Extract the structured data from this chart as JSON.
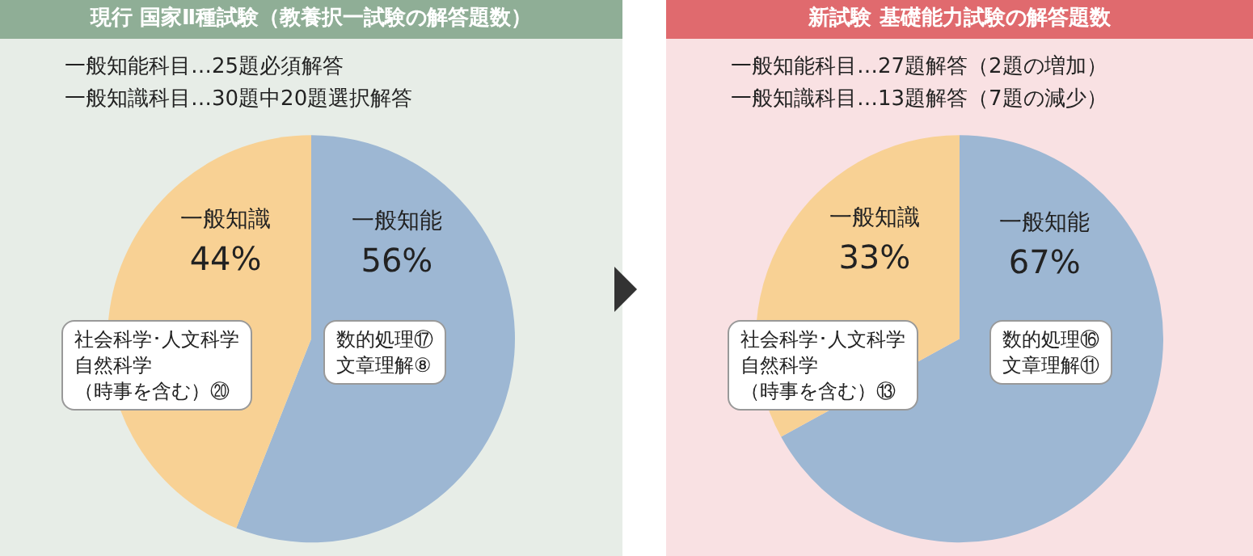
{
  "chart_data": [
    {
      "type": "pie",
      "title": "現行 国家Ⅱ種試験（教養択一試験の解答題数）",
      "categories": [
        "一般知能",
        "一般知識"
      ],
      "values": [
        56,
        44
      ],
      "colors": [
        "#9db7d3",
        "#f8d194"
      ],
      "value_labels": [
        "56%",
        "44%"
      ],
      "legend": false,
      "annotations": [
        "一般知能科目…25題必須解答",
        "一般知識科目…30題中20題選択解答",
        "社会科学･人文科学",
        "自然科学",
        "（時事を含む）⑳",
        "数的処理⑰",
        "文章理解⑧"
      ]
    },
    {
      "type": "pie",
      "title": "新試験 基礎能力試験の解答題数",
      "categories": [
        "一般知能",
        "一般知識"
      ],
      "values": [
        67,
        33
      ],
      "colors": [
        "#9db7d3",
        "#f8d194"
      ],
      "value_labels": [
        "67%",
        "33%"
      ],
      "legend": false,
      "annotations": [
        "一般知能科目…27題解答（2題の増加）",
        "一般知識科目…13題解答（7題の減少）",
        "社会科学･人文科学",
        "自然科学",
        "（時事を含む）⑬",
        "数的処理⑯",
        "文章理解⑪"
      ]
    }
  ]
}
